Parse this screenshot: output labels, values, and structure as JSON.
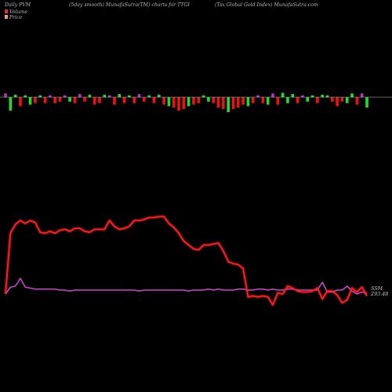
{
  "header": {
    "left": "Daily PVM",
    "center": "(5day smooth) MunafaSutra(TM) charts for TTGI",
    "right": "(Tsx Global Gold Index) MunafaSutra.com"
  },
  "legend": {
    "volume_label": "Volume",
    "price_label": "Price",
    "volume_color": "#e03030",
    "price_color": "#e8a070"
  },
  "annotations": {
    "series_name": "SSM",
    "last_value": "293.48"
  },
  "colors": {
    "background": "#000000",
    "bar_up": "#22dd22",
    "bar_down": "#ee1111",
    "bar_neutral": "#bb33bb",
    "baseline": "#cccccc",
    "price_line": "#ff2020",
    "volume_line": "#cc44cc"
  },
  "chart_data": {
    "type": "line",
    "x": [
      1,
      2,
      3,
      4,
      5,
      6,
      7,
      8,
      9,
      10,
      11,
      12,
      13,
      14,
      15,
      16,
      17,
      18,
      19,
      20,
      21,
      22,
      23,
      24,
      25,
      26,
      27,
      28,
      29,
      30,
      31,
      32,
      33,
      34,
      35,
      36,
      37,
      38,
      39,
      40,
      41,
      42,
      43,
      44,
      45,
      46,
      47,
      48,
      49,
      50,
      51,
      52,
      53,
      54,
      55,
      56,
      57,
      58,
      59,
      60,
      61,
      62,
      63,
      64,
      65,
      66,
      67,
      68,
      69,
      70,
      71,
      72,
      73,
      74
    ],
    "series": [
      {
        "name": "Price",
        "role": "price",
        "values": [
          0.2,
          0.82,
          0.91,
          0.95,
          0.92,
          0.95,
          0.93,
          0.83,
          0.82,
          0.84,
          0.82,
          0.85,
          0.86,
          0.84,
          0.87,
          0.87,
          0.84,
          0.83,
          0.86,
          0.86,
          0.86,
          0.95,
          0.89,
          0.86,
          0.87,
          0.89,
          0.95,
          0.95,
          0.96,
          0.98,
          0.98,
          0.99,
          0.99,
          0.92,
          0.88,
          0.82,
          0.74,
          0.7,
          0.66,
          0.65,
          0.7,
          0.7,
          0.71,
          0.72,
          0.64,
          0.53,
          0.51,
          0.5,
          0.46,
          0.17,
          0.18,
          0.17,
          0.18,
          0.17,
          0.09,
          0.21,
          0.2,
          0.28,
          0.26,
          0.23,
          0.22,
          0.22,
          0.23,
          0.26,
          0.15,
          0.23,
          0.23,
          0.19,
          0.11,
          0.14,
          0.26,
          0.22,
          0.27,
          0.18
        ]
      },
      {
        "name": "Volume",
        "role": "volume",
        "values": [
          0.2,
          0.27,
          0.28,
          0.36,
          0.27,
          0.26,
          0.25,
          0.25,
          0.25,
          0.25,
          0.25,
          0.24,
          0.24,
          0.23,
          0.24,
          0.24,
          0.24,
          0.24,
          0.24,
          0.24,
          0.24,
          0.24,
          0.24,
          0.24,
          0.24,
          0.24,
          0.24,
          0.23,
          0.24,
          0.24,
          0.24,
          0.24,
          0.24,
          0.24,
          0.24,
          0.24,
          0.24,
          0.23,
          0.24,
          0.24,
          0.24,
          0.25,
          0.24,
          0.25,
          0.24,
          0.24,
          0.24,
          0.25,
          0.25,
          0.24,
          0.24,
          0.25,
          0.25,
          0.24,
          0.25,
          0.24,
          0.24,
          0.25,
          0.25,
          0.24,
          0.24,
          0.24,
          0.24,
          0.24,
          0.32,
          0.22,
          0.22,
          0.24,
          0.24,
          0.28,
          0.23,
          0.2,
          0.22,
          0.21
        ]
      },
      {
        "name": "PVM",
        "role": "pvm_bars",
        "values": [
          0.6,
          -0.9,
          0.4,
          -0.6,
          0.3,
          -0.5,
          -0.4,
          0.3,
          -0.4,
          0.3,
          -0.4,
          -0.3,
          0.3,
          -0.3,
          -0.4,
          0.5,
          -0.3,
          0.4,
          -0.5,
          -0.4,
          0.4,
          0.3,
          -0.5,
          0.5,
          -0.4,
          0.3,
          -0.4,
          0.5,
          -0.3,
          0.3,
          -0.4,
          0.4,
          -0.5,
          -0.6,
          -0.7,
          -0.9,
          -0.8,
          -0.6,
          -0.5,
          -0.4,
          0.3,
          -0.3,
          -0.4,
          -0.7,
          -0.8,
          -1.0,
          -0.8,
          -0.7,
          -0.5,
          -0.6,
          -0.4,
          0.3,
          -0.4,
          -0.5,
          0.6,
          -0.5,
          0.7,
          -0.4,
          0.5,
          -0.4,
          0.3,
          -0.3,
          0.3,
          -0.4,
          0.4,
          0.3,
          -0.3,
          -0.6,
          -0.3,
          -0.4,
          0.6,
          -0.5,
          0.6,
          -0.7
        ]
      }
    ]
  }
}
